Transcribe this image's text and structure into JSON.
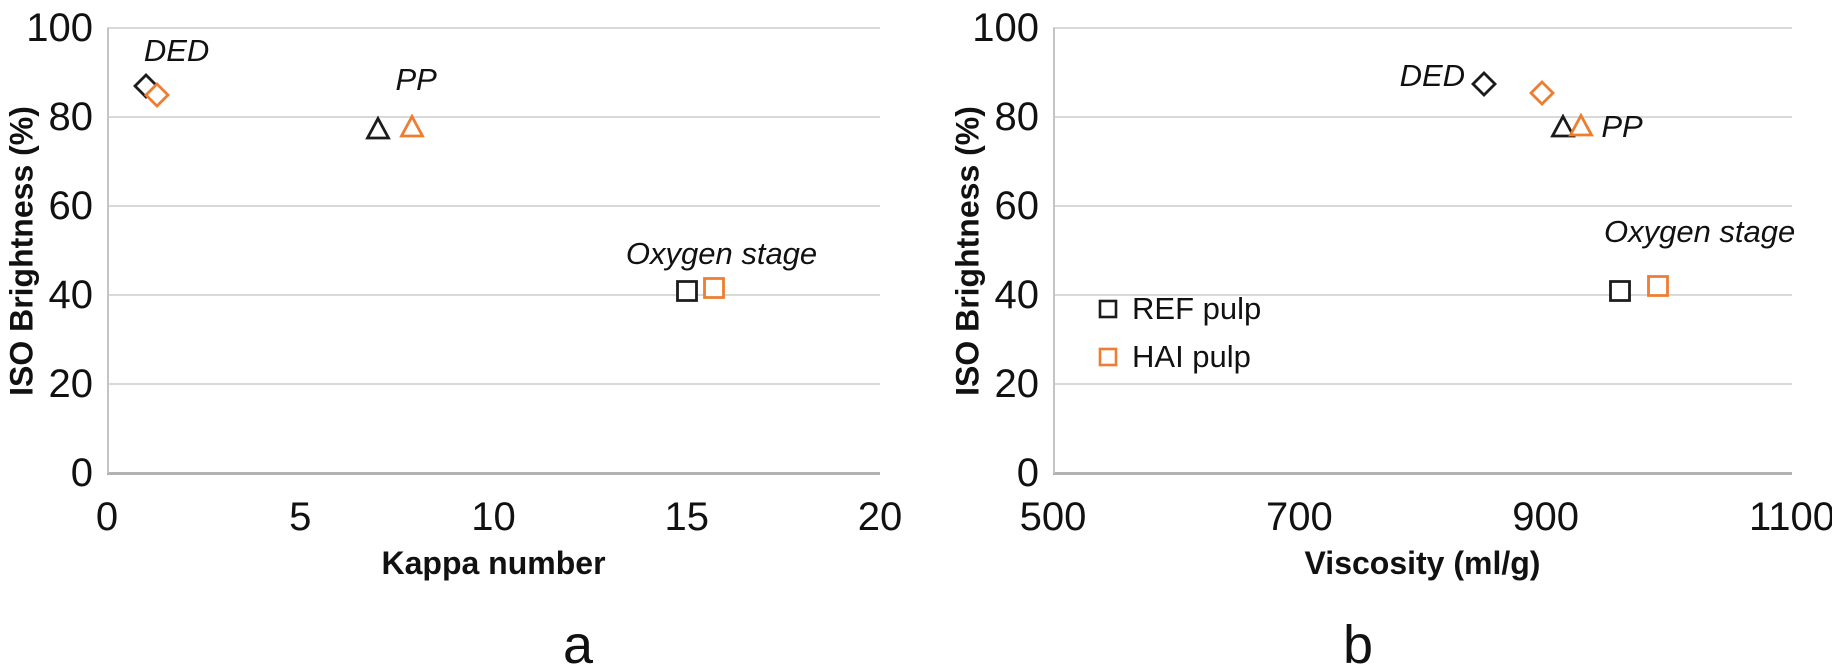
{
  "colors": {
    "ref_series": "#1c1c1c",
    "hai_series": "#ed7d31",
    "gridline": "#d9d9d9",
    "axis_line": "#b3b3b3"
  },
  "chart_data": [
    {
      "id": "a",
      "type": "scatter",
      "caption": "a",
      "xlabel": "Kappa number",
      "ylabel": "ISO Brightness (%)",
      "xlim": [
        0,
        20
      ],
      "ylim": [
        0,
        100
      ],
      "xticks": [
        0,
        5,
        10,
        15,
        20
      ],
      "yticks": [
        0,
        20,
        40,
        60,
        80,
        100
      ],
      "grid": "horizontal",
      "series": [
        {
          "name": "REF pulp",
          "color": "#1c1c1c",
          "points": [
            {
              "stage": "DED",
              "marker": "diamond",
              "x": 1.0,
              "y": 87
            },
            {
              "stage": "PP",
              "marker": "triangle",
              "x": 7.0,
              "y": 77.5
            },
            {
              "stage": "Oxygen stage",
              "marker": "square",
              "x": 15.0,
              "y": 41
            }
          ]
        },
        {
          "name": "HAI pulp",
          "color": "#ed7d31",
          "points": [
            {
              "stage": "DED",
              "marker": "diamond",
              "x": 1.3,
              "y": 85
            },
            {
              "stage": "PP",
              "marker": "triangle",
              "x": 7.9,
              "y": 78
            },
            {
              "stage": "Oxygen stage",
              "marker": "square",
              "x": 15.7,
              "y": 41.5
            }
          ]
        }
      ],
      "annotations": [
        {
          "text": "DED",
          "x": 1.8,
          "y": 94.5
        },
        {
          "text": "PP",
          "x": 8.0,
          "y": 88
        },
        {
          "text": "Oxygen stage",
          "x": 15.9,
          "y": 49
        }
      ]
    },
    {
      "id": "b",
      "type": "scatter",
      "caption": "b",
      "xlabel": "Viscosity (ml/g)",
      "ylabel": "ISO Brightness (%)",
      "xlim": [
        500,
        1100
      ],
      "ylim": [
        0,
        100
      ],
      "xticks": [
        500,
        700,
        900,
        1100
      ],
      "yticks": [
        0,
        20,
        40,
        60,
        80,
        100
      ],
      "grid": "horizontal",
      "series": [
        {
          "name": "REF pulp",
          "color": "#1c1c1c",
          "points": [
            {
              "stage": "DED",
              "marker": "diamond",
              "x": 850,
              "y": 87.5
            },
            {
              "stage": "PP",
              "marker": "triangle",
              "x": 914,
              "y": 78
            },
            {
              "stage": "Oxygen stage",
              "marker": "square",
              "x": 960,
              "y": 41
            }
          ]
        },
        {
          "name": "HAI pulp",
          "color": "#ed7d31",
          "points": [
            {
              "stage": "DED",
              "marker": "diamond",
              "x": 897,
              "y": 85.5
            },
            {
              "stage": "PP",
              "marker": "triangle",
              "x": 929,
              "y": 78.3
            },
            {
              "stage": "Oxygen stage",
              "marker": "square",
              "x": 991,
              "y": 42
            }
          ]
        }
      ],
      "annotations": [
        {
          "text": "DED",
          "x": 808,
          "y": 89
        },
        {
          "text": "PP",
          "x": 962,
          "y": 77.5
        },
        {
          "text": "Oxygen stage",
          "x": 1025,
          "y": 54
        }
      ],
      "legend": {
        "position": "inside-left",
        "items": [
          {
            "label": "REF pulp",
            "color": "#1c1c1c",
            "marker": "square"
          },
          {
            "label": "HAI pulp",
            "color": "#ed7d31",
            "marker": "square"
          }
        ]
      }
    }
  ]
}
